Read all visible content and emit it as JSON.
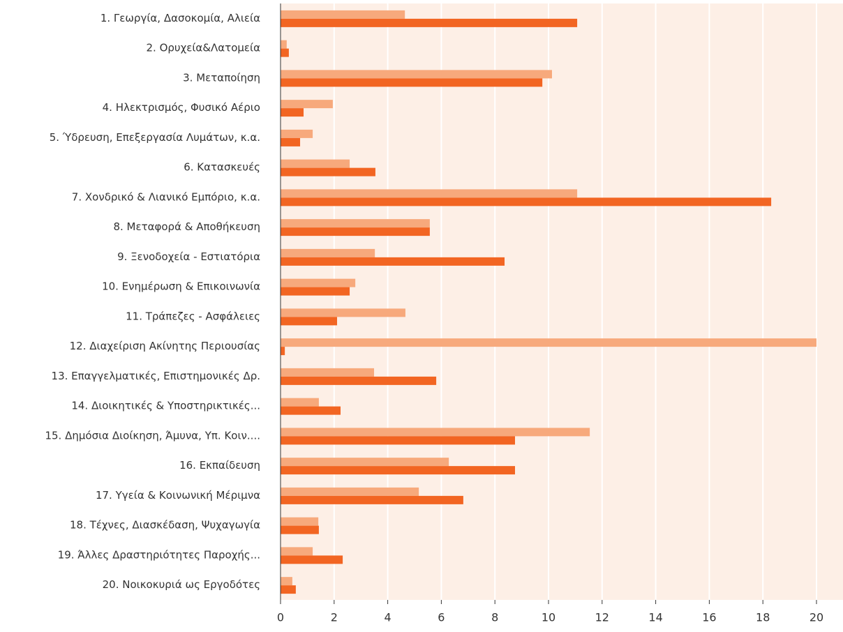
{
  "chart_data": {
    "type": "hbar",
    "categories": [
      "1.   Γεωργία, Δασοκομία, Αλιεία",
      "2.   Ορυχεία&Λατομεία",
      "3.   Μεταποίηση",
      "4.   Ηλεκτρισμός, Φυσικό Αέριο",
      "5.   Ύδρευση, Επεξεργασία Λυμάτων, κ.α.",
      "6.   Κατασκευές",
      "7.   Χονδρικό & Λιανικό Εμπόριο, κ.α.",
      "8.   Μεταφορά & Αποθήκευση",
      "9.   Ξενοδοχεία - Εστιατόρια",
      "10. Ενημέρωση & Επικοινωνία",
      "11. Τράπεζες - Ασφάλειες",
      "12. Διαχείριση Ακίνητης Περιουσίας",
      "13. Επαγγελματικές, Επιστημονικές Δρ.",
      "14. Διοικητικές & Υποστηρικτικές...",
      "15. Δημόσια Διοίκηση, Άμυνα, Υπ. Κοιν....",
      "16. Εκπαίδευση",
      "17. Υγεία & Κοινωνική Μέριμνα",
      "18. Τέχνες, Διασκέδαση, Ψυχαγωγία",
      "19. Άλλες Δραστηριότητες Παροχής...",
      "20. Νοικοκυριά ως Εργοδότες"
    ],
    "series": [
      {
        "color": "#f7a97c",
        "values": [
          4.64,
          0.23,
          10.13,
          1.95,
          1.2,
          2.58,
          11.07,
          5.57,
          3.52,
          2.79,
          4.66,
          20,
          3.49,
          1.43,
          11.54,
          6.28,
          5.16,
          1.41,
          1.2,
          0.44
        ]
      },
      {
        "color": "#f26522",
        "values": [
          11.07,
          0.31,
          9.77,
          0.86,
          0.73,
          3.54,
          18.31,
          5.57,
          8.36,
          2.58,
          2.11,
          0.16,
          5.81,
          2.24,
          8.75,
          8.75,
          6.82,
          1.43,
          2.32,
          0.57
        ]
      }
    ],
    "xlim": [
      0,
      21
    ],
    "xticks": [
      0,
      2,
      4,
      6,
      8,
      10,
      12,
      14,
      16,
      18,
      20
    ],
    "grid": true
  }
}
